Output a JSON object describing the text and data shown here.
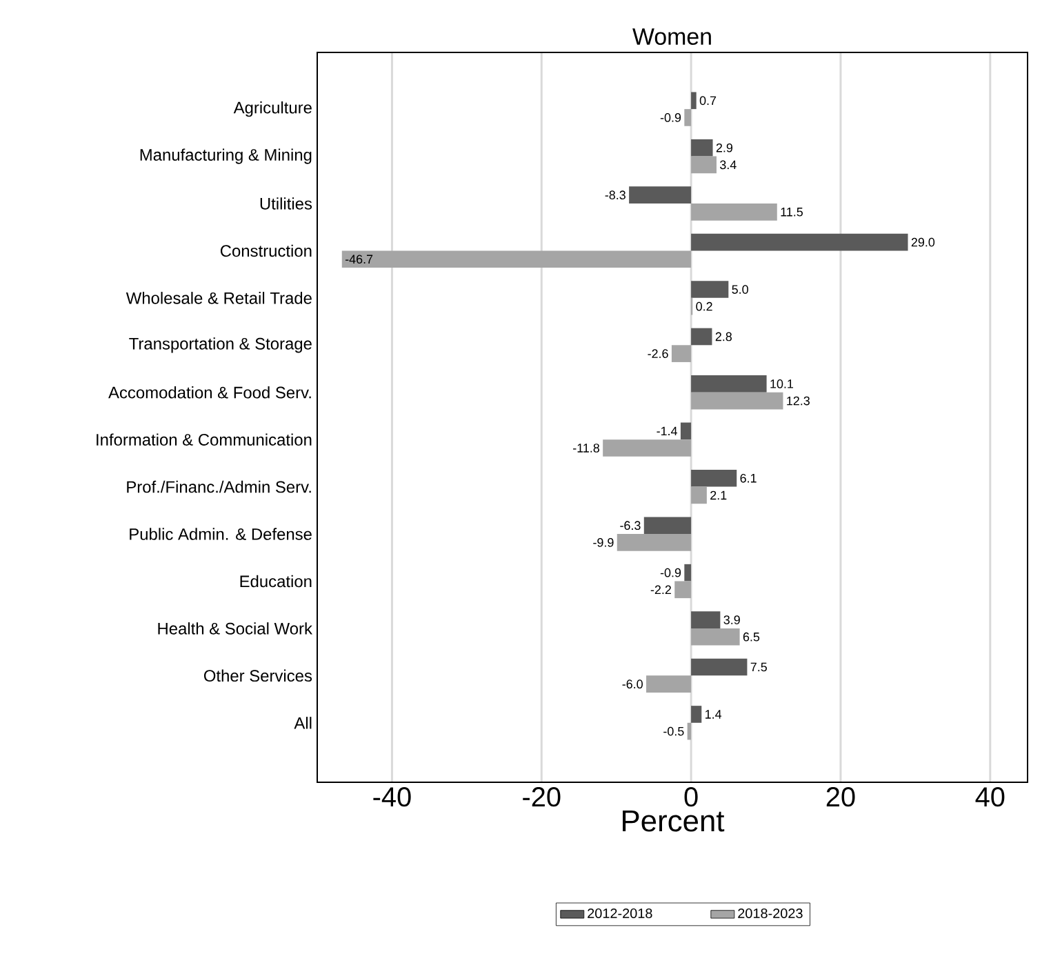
{
  "chart_data": {
    "type": "bar",
    "orientation": "horizontal",
    "title": "Women",
    "xlabel": "Percent",
    "categories": [
      "Agriculture",
      "Manufacturing & Mining",
      "Utilities",
      "Construction",
      "Wholesale & Retail Trade",
      "Transportation & Storage",
      "Accomodation & Food Serv.",
      "Information & Communication",
      "Prof./Financ./Admin Serv.",
      "Public Admin. & Defense",
      "Education",
      "Health & Social Work",
      "Other Services",
      "All"
    ],
    "series": [
      {
        "name": "2012-2018",
        "color": "#5a5a5a",
        "values": [
          0.7,
          2.9,
          -8.3,
          29.0,
          5.0,
          2.8,
          10.1,
          -1.4,
          6.1,
          -6.3,
          -0.9,
          3.9,
          7.5,
          1.4
        ],
        "value_labels": [
          "0.7",
          "2.9",
          "-8.3",
          "29.0",
          "5.0",
          "2.8",
          "10.1",
          "-1.4",
          "6.1",
          "-6.3",
          "-0.9",
          "3.9",
          "7.5",
          "1.4"
        ]
      },
      {
        "name": "2018-2023",
        "color": "#a5a5a5",
        "values": [
          -0.9,
          3.4,
          11.5,
          -46.7,
          0.2,
          -2.6,
          12.3,
          -11.8,
          2.1,
          -9.9,
          -2.2,
          6.5,
          -6.0,
          -0.5
        ],
        "value_labels": [
          "-0.9",
          "3.4",
          "11.5",
          "-46.7",
          "0.2",
          "-2.6",
          "12.3",
          "-11.8",
          "2.1",
          "-9.9",
          "-2.2",
          "6.5",
          "-6.0",
          "-0.5"
        ]
      }
    ],
    "xlim": [
      -50,
      45
    ],
    "xticks": [
      -40,
      -20,
      0,
      20,
      40
    ],
    "grid": "x",
    "legend": "bottom"
  }
}
